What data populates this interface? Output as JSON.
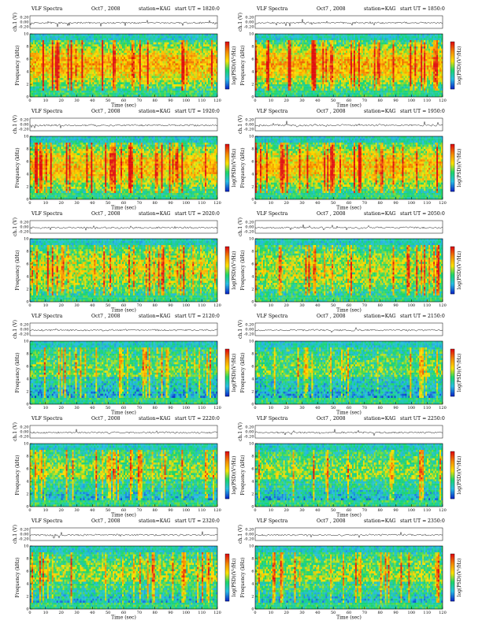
{
  "figure": {
    "title_prefix": "VLF Spectra",
    "date": "Oct7 , 2008",
    "station": "station=KAG",
    "start_label": "start  UT  =",
    "xlabel": "Time  (sec)",
    "ylabel_spec": "Frequency  (kHz)",
    "ylabel_ch": "ch.1 (V)",
    "colorbar_label": "log(PSD)(V²/Hz)"
  },
  "colors": {
    "spectrum_low": "#0a2cc8",
    "spectrum_mid": "#19d76a",
    "spectrum_high": "#ffe200",
    "spectrum_peak": "#e01010",
    "trace": "#000000"
  },
  "chart_data": [
    {
      "type": "heatmap",
      "start_ut": "1820:0",
      "xlim": [
        0,
        120
      ],
      "ylim": [
        0,
        10
      ],
      "ch_ylim": [
        -0.2,
        0.2
      ],
      "x_ticks": [
        0,
        10,
        20,
        30,
        40,
        50,
        60,
        70,
        80,
        90,
        100,
        110,
        120
      ],
      "y_ticks": [
        0,
        2,
        4,
        6,
        8,
        10
      ],
      "ch_ticks": [
        "0.20",
        "0.00",
        "-0.20"
      ],
      "activity": 0.9
    },
    {
      "type": "heatmap",
      "start_ut": "1850:0",
      "xlim": [
        0,
        120
      ],
      "ylim": [
        0,
        10
      ],
      "ch_ylim": [
        -0.2,
        0.2
      ],
      "x_ticks": [
        0,
        10,
        20,
        30,
        40,
        50,
        60,
        70,
        80,
        90,
        100,
        110,
        120
      ],
      "y_ticks": [
        0,
        2,
        4,
        6,
        8,
        10
      ],
      "ch_ticks": [
        "0.20",
        "0.00",
        "-0.20"
      ],
      "activity": 0.9
    },
    {
      "type": "heatmap",
      "start_ut": "1920:0",
      "xlim": [
        0,
        120
      ],
      "ylim": [
        0,
        10
      ],
      "ch_ylim": [
        -0.2,
        0.2
      ],
      "x_ticks": [
        0,
        10,
        20,
        30,
        40,
        50,
        60,
        70,
        80,
        90,
        100,
        110,
        120
      ],
      "y_ticks": [
        0,
        2,
        4,
        6,
        8,
        10
      ],
      "ch_ticks": [
        "0.20",
        "0.00",
        "-0.20"
      ],
      "activity": 0.85
    },
    {
      "type": "heatmap",
      "start_ut": "1950:0",
      "xlim": [
        0,
        120
      ],
      "ylim": [
        0,
        10
      ],
      "ch_ylim": [
        -0.2,
        0.2
      ],
      "x_ticks": [
        0,
        10,
        20,
        30,
        40,
        50,
        60,
        70,
        80,
        90,
        100,
        110,
        120
      ],
      "y_ticks": [
        0,
        2,
        4,
        6,
        8,
        10
      ],
      "ch_ticks": [
        "0.20",
        "0.00",
        "-0.20"
      ],
      "activity": 0.85
    },
    {
      "type": "heatmap",
      "start_ut": "2020:0",
      "xlim": [
        0,
        120
      ],
      "ylim": [
        0,
        10
      ],
      "ch_ylim": [
        -0.2,
        0.2
      ],
      "x_ticks": [
        0,
        10,
        20,
        30,
        40,
        50,
        60,
        70,
        80,
        90,
        100,
        110,
        120
      ],
      "y_ticks": [
        0,
        2,
        4,
        6,
        8,
        10
      ],
      "ch_ticks": [
        "0.20",
        "0.00",
        "-0.20"
      ],
      "activity": 0.6
    },
    {
      "type": "heatmap",
      "start_ut": "2050:0",
      "xlim": [
        0,
        120
      ],
      "ylim": [
        0,
        10
      ],
      "ch_ylim": [
        -0.2,
        0.2
      ],
      "x_ticks": [
        0,
        10,
        20,
        30,
        40,
        50,
        60,
        70,
        80,
        90,
        100,
        110,
        120
      ],
      "y_ticks": [
        0,
        2,
        4,
        6,
        8,
        10
      ],
      "ch_ticks": [
        "0.20",
        "0.00",
        "-0.20"
      ],
      "activity": 0.55
    },
    {
      "type": "heatmap",
      "start_ut": "2120:0",
      "xlim": [
        0,
        120
      ],
      "ylim": [
        0,
        10
      ],
      "ch_ylim": [
        -0.2,
        0.2
      ],
      "x_ticks": [
        0,
        10,
        20,
        30,
        40,
        50,
        60,
        70,
        80,
        90,
        100,
        110,
        120
      ],
      "y_ticks": [
        0,
        2,
        4,
        6,
        8,
        10
      ],
      "ch_ticks": [
        "0.20",
        "0.00",
        "-0.20"
      ],
      "activity": 0.3
    },
    {
      "type": "heatmap",
      "start_ut": "2150:0",
      "xlim": [
        0,
        120
      ],
      "ylim": [
        0,
        10
      ],
      "ch_ylim": [
        -0.2,
        0.2
      ],
      "x_ticks": [
        0,
        10,
        20,
        30,
        40,
        50,
        60,
        70,
        80,
        90,
        100,
        110,
        120
      ],
      "y_ticks": [
        0,
        2,
        4,
        6,
        8,
        10
      ],
      "ch_ticks": [
        "0.20",
        "0.00",
        "-0.20"
      ],
      "activity": 0.3
    },
    {
      "type": "heatmap",
      "start_ut": "2220:0",
      "xlim": [
        0,
        120
      ],
      "ylim": [
        0,
        10
      ],
      "ch_ylim": [
        -0.2,
        0.2
      ],
      "x_ticks": [
        0,
        10,
        20,
        30,
        40,
        50,
        60,
        70,
        80,
        90,
        100,
        110,
        120
      ],
      "y_ticks": [
        0,
        2,
        4,
        6,
        8,
        10
      ],
      "ch_ticks": [
        "0.20",
        "0.00",
        "-0.20"
      ],
      "activity": 0.4
    },
    {
      "type": "heatmap",
      "start_ut": "2250:0",
      "xlim": [
        0,
        120
      ],
      "ylim": [
        0,
        10
      ],
      "ch_ylim": [
        -0.2,
        0.2
      ],
      "x_ticks": [
        0,
        10,
        20,
        30,
        40,
        50,
        60,
        70,
        80,
        90,
        100,
        110,
        120
      ],
      "y_ticks": [
        0,
        2,
        4,
        6,
        8,
        10
      ],
      "ch_ticks": [
        "0.20",
        "0.00",
        "-0.20"
      ],
      "activity": 0.4
    },
    {
      "type": "heatmap",
      "start_ut": "2320:0",
      "xlim": [
        0,
        120
      ],
      "ylim": [
        0,
        10
      ],
      "ch_ylim": [
        -0.2,
        0.2
      ],
      "x_ticks": [
        0,
        10,
        20,
        30,
        40,
        50,
        60,
        70,
        80,
        90,
        100,
        110,
        120
      ],
      "y_ticks": [
        0,
        2,
        4,
        6,
        8,
        10
      ],
      "ch_ticks": [
        "0.20",
        "0.00",
        "-0.20"
      ],
      "activity": 0.45
    },
    {
      "type": "heatmap",
      "start_ut": "2350:0",
      "xlim": [
        0,
        120
      ],
      "ylim": [
        0,
        10
      ],
      "ch_ylim": [
        -0.2,
        0.2
      ],
      "x_ticks": [
        0,
        10,
        20,
        30,
        40,
        50,
        60,
        70,
        80,
        90,
        100,
        110,
        120
      ],
      "y_ticks": [
        0,
        2,
        4,
        6,
        8,
        10
      ],
      "ch_ticks": [
        "0.20",
        "0.00",
        "-0.20"
      ],
      "activity": 0.45
    }
  ]
}
